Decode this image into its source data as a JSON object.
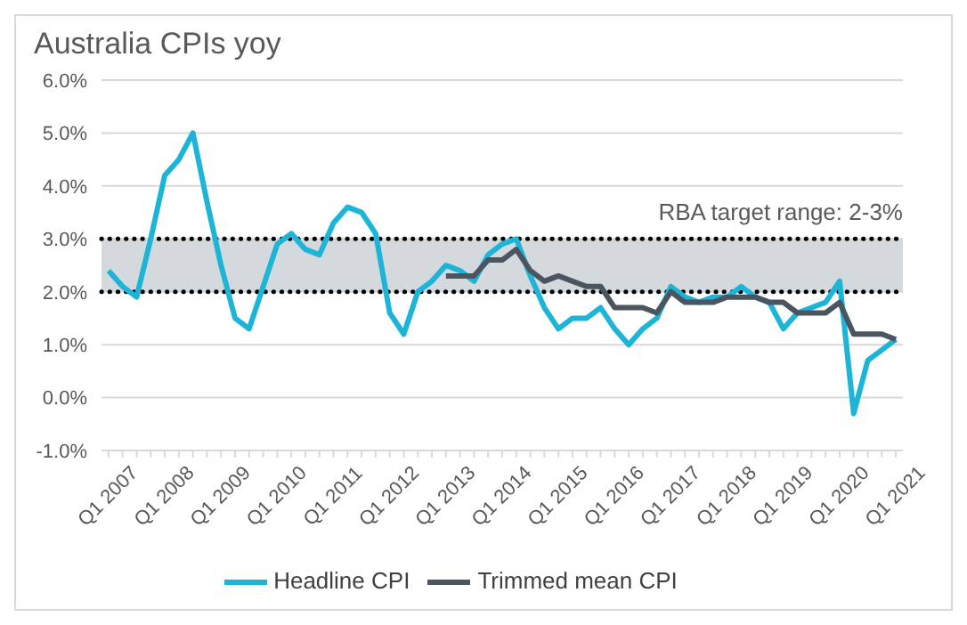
{
  "chart_data": {
    "type": "line",
    "title": "Australia CPIs yoy",
    "categories": [
      "Q1 2007",
      null,
      null,
      null,
      "Q1 2008",
      null,
      null,
      null,
      "Q1 2009",
      null,
      null,
      null,
      "Q1 2010",
      null,
      null,
      null,
      "Q1 2011",
      null,
      null,
      null,
      "Q1 2012",
      null,
      null,
      null,
      "Q1 2013",
      null,
      null,
      null,
      "Q1 2014",
      null,
      null,
      null,
      "Q1 2015",
      null,
      null,
      null,
      "Q1 2016",
      null,
      null,
      null,
      "Q1 2017",
      null,
      null,
      null,
      "Q1 2018",
      null,
      null,
      null,
      "Q1 2019",
      null,
      null,
      null,
      "Q1 2020",
      null,
      null,
      null,
      "Q1 2021"
    ],
    "series": [
      {
        "name": "Headline CPI",
        "color": "#1cb5d8",
        "values": [
          2.4,
          2.1,
          1.9,
          3.0,
          4.2,
          4.5,
          5.0,
          3.7,
          2.5,
          1.5,
          1.3,
          2.1,
          2.9,
          3.1,
          2.8,
          2.7,
          3.3,
          3.6,
          3.5,
          3.1,
          1.6,
          1.2,
          2.0,
          2.2,
          2.5,
          2.4,
          2.2,
          2.7,
          2.9,
          3.0,
          2.3,
          1.7,
          1.3,
          1.5,
          1.5,
          1.7,
          1.3,
          1.0,
          1.3,
          1.5,
          2.1,
          1.9,
          1.8,
          1.9,
          1.9,
          2.1,
          1.9,
          1.8,
          1.3,
          1.6,
          1.7,
          1.8,
          2.2,
          -0.3,
          0.7,
          0.9,
          1.1
        ]
      },
      {
        "name": "Trimmed mean CPI",
        "color": "#4a5560",
        "values": [
          null,
          null,
          null,
          null,
          null,
          null,
          null,
          null,
          null,
          null,
          null,
          null,
          null,
          null,
          null,
          null,
          null,
          null,
          null,
          null,
          null,
          null,
          null,
          null,
          2.3,
          2.3,
          2.3,
          2.6,
          2.6,
          2.8,
          2.4,
          2.2,
          2.3,
          2.2,
          2.1,
          2.1,
          1.7,
          1.7,
          1.7,
          1.6,
          2.0,
          1.8,
          1.8,
          1.8,
          1.9,
          1.9,
          1.9,
          1.8,
          1.8,
          1.6,
          1.6,
          1.6,
          1.8,
          1.2,
          1.2,
          1.2,
          1.1
        ]
      }
    ],
    "ylim": [
      -1,
      6
    ],
    "yticks": [
      {
        "value": -1,
        "label": "-1.0%"
      },
      {
        "value": 0,
        "label": "0.0%"
      },
      {
        "value": 1,
        "label": "1.0%"
      },
      {
        "value": 2,
        "label": "2.0%"
      },
      {
        "value": 3,
        "label": "3.0%"
      },
      {
        "value": 4,
        "label": "4.0%"
      },
      {
        "value": 5,
        "label": "5.0%"
      },
      {
        "value": 6,
        "label": "6.0%"
      }
    ],
    "bands": [
      {
        "axis": "y",
        "from": 2,
        "to": 3,
        "label": "RBA target range: 2-3%",
        "color": "#d3d9dc"
      }
    ],
    "grid": "y",
    "legend": "bottom",
    "marker": "none",
    "line_style": "solid"
  }
}
